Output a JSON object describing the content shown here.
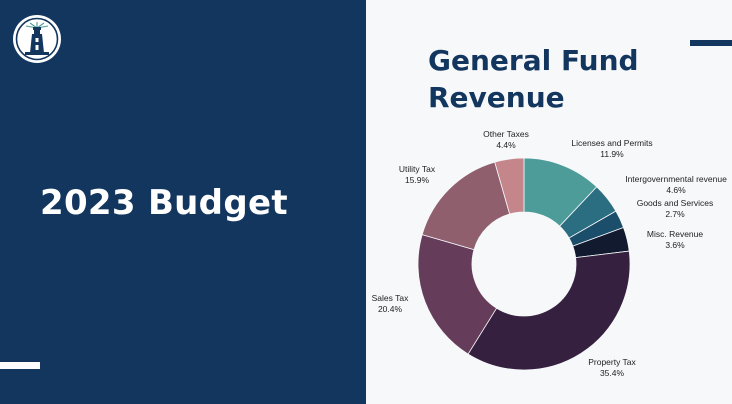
{
  "slide": {
    "heading": "2023 Budget",
    "chart_title_line1": "General Fund",
    "chart_title_line2": "Revenue",
    "logo_icon": "lighthouse-seal-icon"
  },
  "colors": {
    "navy": "#13365e",
    "background": "#f7f8fa"
  },
  "chart_data": {
    "type": "pie",
    "donut": true,
    "title": "General Fund Revenue",
    "legend": "none",
    "slices": [
      {
        "name": "Licenses and Permits",
        "value": 11.9,
        "label": "11.9%",
        "color": "#4e9c9a"
      },
      {
        "name": "Intergovernmental revenue",
        "value": 4.6,
        "label": "4.6%",
        "color": "#2b6e81"
      },
      {
        "name": "Goods and Services",
        "value": 2.7,
        "label": "2.7%",
        "color": "#1b4e6b"
      },
      {
        "name": "Misc. Revenue",
        "value": 3.6,
        "label": "3.6%",
        "color": "#111a2e"
      },
      {
        "name": "Property Tax",
        "value": 35.4,
        "label": "35.4%",
        "color": "#352040"
      },
      {
        "name": "Sales Tax",
        "value": 20.4,
        "label": "20.4%",
        "color": "#653d5b"
      },
      {
        "name": "Utility Tax",
        "value": 15.9,
        "label": "15.9%",
        "color": "#8f5f6e"
      },
      {
        "name": "Other Taxes",
        "value": 4.4,
        "label": "4.4%",
        "color": "#c4868a"
      }
    ]
  }
}
